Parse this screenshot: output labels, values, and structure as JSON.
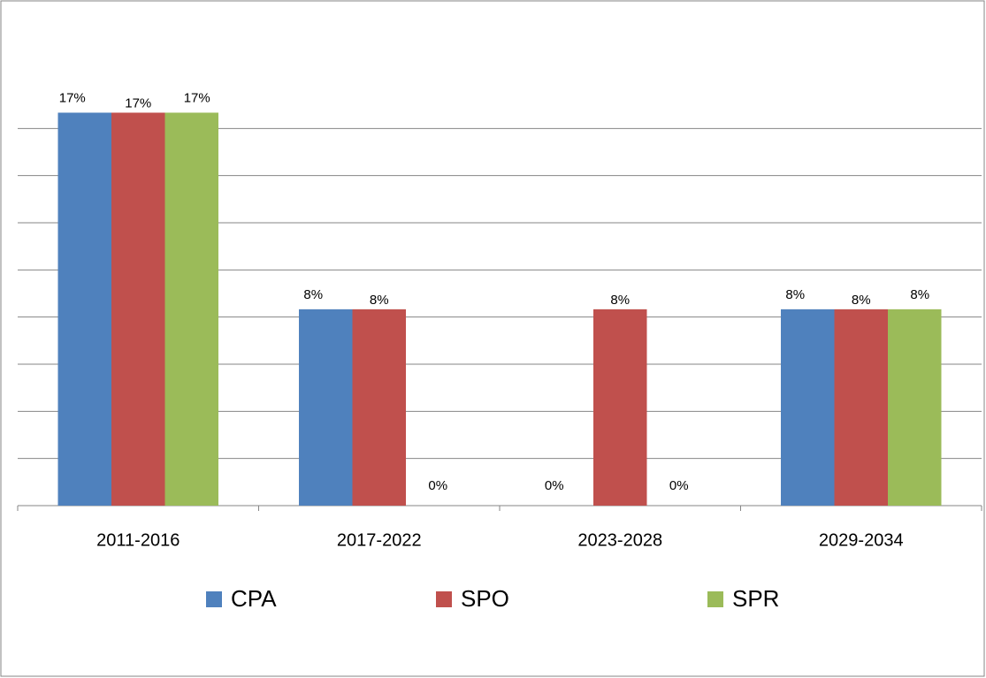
{
  "chart_data": {
    "type": "bar",
    "categories": [
      "2011-2016",
      "2017-2022",
      "2023-2028",
      "2029-2034"
    ],
    "series": [
      {
        "name": "CPA",
        "color": "#4f81bd",
        "values": [
          16.67,
          8.33,
          0,
          8.33
        ],
        "value_labels": [
          "17%",
          "8%",
          "0%",
          "8%"
        ]
      },
      {
        "name": "SPO",
        "color": "#c0504d",
        "values": [
          16.67,
          8.33,
          8.33,
          8.33
        ],
        "value_labels": [
          "17%",
          "8%",
          "8%",
          "8%"
        ]
      },
      {
        "name": "SPR",
        "color": "#9bbb59",
        "values": [
          16.67,
          0,
          0,
          8.33
        ],
        "value_labels": [
          "17%",
          "0%",
          "0%",
          "8%"
        ]
      }
    ],
    "ylim": [
      0,
      18
    ],
    "yticks": [
      0,
      2,
      4,
      6,
      8,
      10,
      12,
      14,
      16
    ],
    "grid": true,
    "legend": "bottom"
  }
}
